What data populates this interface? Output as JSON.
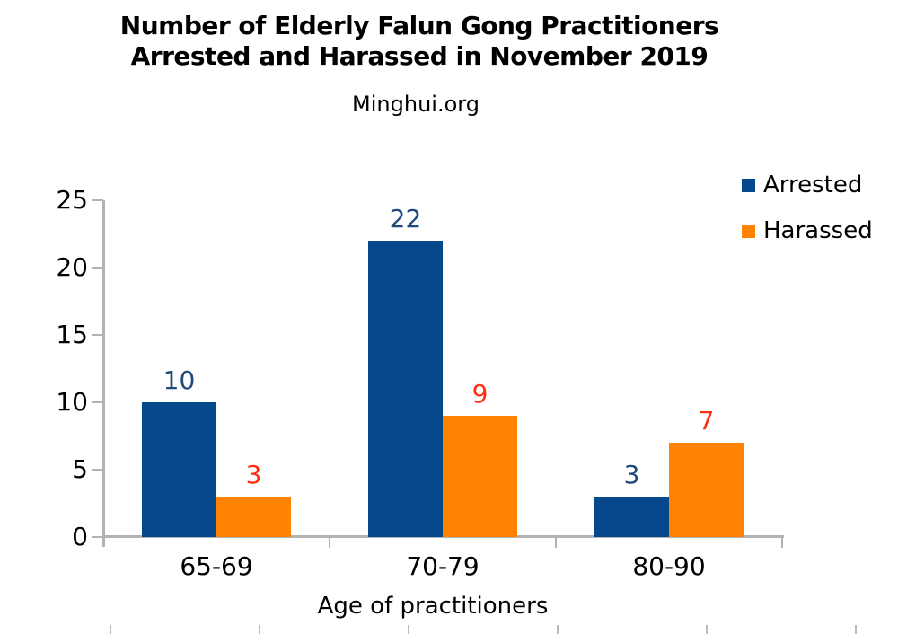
{
  "chart_data": {
    "type": "bar",
    "title_lines": [
      "Number of Elderly Falun Gong Practitioners",
      "Arrested and Harassed in November 2019"
    ],
    "subtitle": "Minghui.org",
    "categories": [
      "65-69",
      "70-79",
      "80-90"
    ],
    "series": [
      {
        "name": "Arrested",
        "color": "#05498c",
        "label_color": "#1f497d",
        "values": [
          10,
          22,
          3
        ]
      },
      {
        "name": "Harassed",
        "color": "#ff8200",
        "label_color": "#ff2e12",
        "values": [
          3,
          9,
          7
        ]
      }
    ],
    "xlabel": "Age of practitioners",
    "ylabel": "",
    "ylim": [
      0,
      25
    ],
    "yticks": [
      0,
      5,
      10,
      15,
      20,
      25
    ],
    "legend_position": "top-right",
    "grid": false,
    "axis_color": "#b3b3b3",
    "text_color": "#000000",
    "background_color": "#ffffff"
  }
}
